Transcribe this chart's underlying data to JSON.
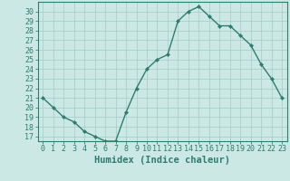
{
  "x": [
    0,
    1,
    2,
    3,
    4,
    5,
    6,
    7,
    8,
    9,
    10,
    11,
    12,
    13,
    14,
    15,
    16,
    17,
    18,
    19,
    20,
    21,
    22,
    23
  ],
  "y": [
    21,
    20,
    19,
    18.5,
    17.5,
    17,
    16.5,
    16.5,
    19.5,
    22,
    24,
    25,
    25.5,
    29,
    30,
    30.5,
    29.5,
    28.5,
    28.5,
    27.5,
    26.5,
    24.5,
    23,
    21
  ],
  "line_color": "#2e7d6e",
  "marker": "D",
  "marker_size": 2,
  "bg_color": "#cce8e4",
  "grid_color": "#aacfcb",
  "xlabel": "Humidex (Indice chaleur)",
  "xlim": [
    -0.5,
    23.5
  ],
  "ylim": [
    16.5,
    31
  ],
  "yticks": [
    17,
    18,
    19,
    20,
    21,
    22,
    23,
    24,
    25,
    26,
    27,
    28,
    29,
    30
  ],
  "xtick_labels": [
    "0",
    "1",
    "2",
    "3",
    "4",
    "5",
    "6",
    "7",
    "8",
    "9",
    "10",
    "11",
    "12",
    "13",
    "14",
    "15",
    "16",
    "17",
    "18",
    "19",
    "20",
    "21",
    "22",
    "23"
  ],
  "tick_color": "#2e7d6e",
  "spine_color": "#2e7d6e",
  "xlabel_fontsize": 7.5,
  "tick_fontsize": 6,
  "line_width": 1.0
}
